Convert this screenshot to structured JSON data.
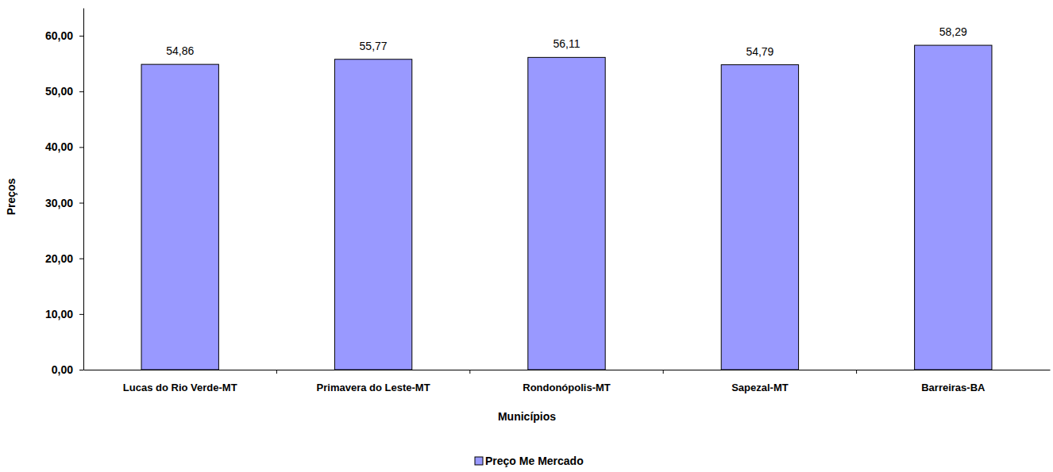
{
  "chart_data": {
    "type": "bar",
    "x_label": "Municípios",
    "y_label": "Preços",
    "categories": [
      "Lucas do Rio Verde-MT",
      "Primavera do Leste-MT",
      "Rondonópolis-MT",
      "Sapezal-MT",
      "Barreiras-BA"
    ],
    "series": [
      {
        "name": "Preço Me Mercado",
        "color": "#9999ff",
        "values": [
          54.86,
          55.77,
          56.11,
          54.79,
          58.29
        ],
        "value_labels": [
          "54,86",
          "55,77",
          "56,11",
          "54,79",
          "58,29"
        ]
      }
    ],
    "ylim": [
      0,
      65
    ],
    "yticks": [
      {
        "value": 0,
        "label": "0,00"
      },
      {
        "value": 10,
        "label": "10,00"
      },
      {
        "value": 20,
        "label": "20,00"
      },
      {
        "value": 30,
        "label": "30,00"
      },
      {
        "value": 40,
        "label": "40,00"
      },
      {
        "value": 50,
        "label": "50,00"
      },
      {
        "value": 60,
        "label": "60,00"
      }
    ],
    "grid": false,
    "data_labels": true,
    "legend": "bottom"
  }
}
